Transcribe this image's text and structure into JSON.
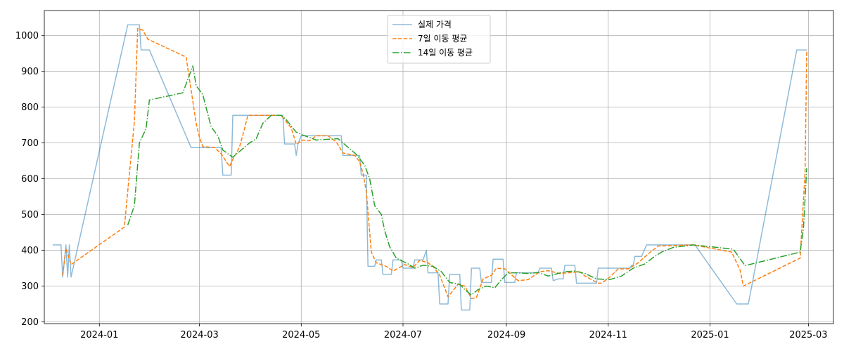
{
  "chart_data": {
    "type": "line",
    "title": "",
    "xlabel": "",
    "ylabel": "",
    "grid": true,
    "legend_position": "top-center",
    "x_ticks": [
      "2024-01",
      "2024-03",
      "2024-05",
      "2024-07",
      "2024-09",
      "2024-11",
      "2025-01",
      "2025-03"
    ],
    "y_ticks": [
      200,
      300,
      400,
      500,
      600,
      700,
      800,
      900,
      1000
    ],
    "xlim": [
      "2023-11-29",
      "2025-03-16"
    ],
    "ylim": [
      195,
      1070
    ],
    "series": [
      {
        "name": "실제 가격",
        "color": "#1f77b4",
        "style": "solid",
        "opacity": 0.5,
        "points": [
          [
            "2023-12-04",
            415
          ],
          [
            "2023-12-09",
            415
          ],
          [
            "2023-12-10",
            325
          ],
          [
            "2023-12-12",
            415
          ],
          [
            "2023-12-13",
            325
          ],
          [
            "2023-12-14",
            415
          ],
          [
            "2023-12-15",
            325
          ],
          [
            "2024-01-18",
            1030
          ],
          [
            "2024-01-25",
            1030
          ],
          [
            "2024-01-26",
            960
          ],
          [
            "2024-01-31",
            960
          ],
          [
            "2024-02-25",
            687
          ],
          [
            "2024-03-14",
            687
          ],
          [
            "2024-03-15",
            610
          ],
          [
            "2024-03-20",
            610
          ],
          [
            "2024-03-21",
            777
          ],
          [
            "2024-04-20",
            777
          ],
          [
            "2024-04-21",
            697
          ],
          [
            "2024-04-27",
            697
          ],
          [
            "2024-04-28",
            665
          ],
          [
            "2024-04-29",
            697
          ],
          [
            "2024-05-01",
            720
          ],
          [
            "2024-05-25",
            720
          ],
          [
            "2024-05-26",
            665
          ],
          [
            "2024-06-05",
            665
          ],
          [
            "2024-06-06",
            610
          ],
          [
            "2024-06-09",
            610
          ],
          [
            "2024-06-10",
            355
          ],
          [
            "2024-06-14",
            355
          ],
          [
            "2024-06-15",
            373
          ],
          [
            "2024-06-18",
            373
          ],
          [
            "2024-06-19",
            333
          ],
          [
            "2024-06-24",
            333
          ],
          [
            "2024-06-25",
            373
          ],
          [
            "2024-06-30",
            373
          ],
          [
            "2024-07-01",
            350
          ],
          [
            "2024-07-07",
            350
          ],
          [
            "2024-07-08",
            373
          ],
          [
            "2024-07-13",
            373
          ],
          [
            "2024-07-15",
            400
          ],
          [
            "2024-07-16",
            337
          ],
          [
            "2024-07-22",
            337
          ],
          [
            "2024-07-23",
            250
          ],
          [
            "2024-07-28",
            250
          ],
          [
            "2024-07-29",
            333
          ],
          [
            "2024-08-04",
            333
          ],
          [
            "2024-08-05",
            233
          ],
          [
            "2024-08-10",
            233
          ],
          [
            "2024-08-11",
            350
          ],
          [
            "2024-08-16",
            350
          ],
          [
            "2024-08-17",
            310
          ],
          [
            "2024-08-23",
            310
          ],
          [
            "2024-08-24",
            375
          ],
          [
            "2024-08-30",
            375
          ],
          [
            "2024-08-31",
            310
          ],
          [
            "2024-09-06",
            310
          ],
          [
            "2024-09-07",
            337
          ],
          [
            "2024-09-20",
            337
          ],
          [
            "2024-09-21",
            350
          ],
          [
            "2024-09-28",
            350
          ],
          [
            "2024-09-29",
            315
          ],
          [
            "2024-10-02",
            320
          ],
          [
            "2024-10-05",
            320
          ],
          [
            "2024-10-06",
            358
          ],
          [
            "2024-10-12",
            358
          ],
          [
            "2024-10-13",
            308
          ],
          [
            "2024-10-25",
            308
          ],
          [
            "2024-10-26",
            350
          ],
          [
            "2024-11-14",
            350
          ],
          [
            "2024-11-15",
            358
          ],
          [
            "2024-11-16",
            358
          ],
          [
            "2024-11-17",
            383
          ],
          [
            "2024-11-21",
            383
          ],
          [
            "2024-11-24",
            415
          ],
          [
            "2024-12-23",
            415
          ],
          [
            "2025-01-17",
            250
          ],
          [
            "2025-01-24",
            250
          ],
          [
            "2025-02-22",
            960
          ],
          [
            "2025-02-28",
            960
          ]
        ]
      },
      {
        "name": "7일 이동 평균",
        "color": "#ff7f0e",
        "style": "dashed",
        "opacity": 1,
        "points": [
          [
            "2023-12-10",
            330
          ],
          [
            "2023-12-12",
            405
          ],
          [
            "2023-12-15",
            360
          ],
          [
            "2024-01-16",
            465
          ],
          [
            "2024-01-18",
            565
          ],
          [
            "2024-01-22",
            760
          ],
          [
            "2024-01-24",
            1020
          ],
          [
            "2024-01-27",
            1015
          ],
          [
            "2024-01-30",
            990
          ],
          [
            "2024-02-22",
            940
          ],
          [
            "2024-02-28",
            755
          ],
          [
            "2024-03-01",
            715
          ],
          [
            "2024-03-03",
            690
          ],
          [
            "2024-03-10",
            687
          ],
          [
            "2024-03-14",
            670
          ],
          [
            "2024-03-19",
            634
          ],
          [
            "2024-03-21",
            654
          ],
          [
            "2024-03-25",
            688
          ],
          [
            "2024-03-28",
            740
          ],
          [
            "2024-03-30",
            777
          ],
          [
            "2024-04-19",
            777
          ],
          [
            "2024-04-21",
            765
          ],
          [
            "2024-04-25",
            742
          ],
          [
            "2024-04-28",
            696
          ],
          [
            "2024-05-02",
            708
          ],
          [
            "2024-05-06",
            706
          ],
          [
            "2024-05-10",
            720
          ],
          [
            "2024-05-17",
            720
          ],
          [
            "2024-05-22",
            703
          ],
          [
            "2024-05-26",
            672
          ],
          [
            "2024-06-02",
            665
          ],
          [
            "2024-06-05",
            648
          ],
          [
            "2024-06-07",
            615
          ],
          [
            "2024-06-09",
            565
          ],
          [
            "2024-06-12",
            395
          ],
          [
            "2024-06-15",
            365
          ],
          [
            "2024-06-21",
            355
          ],
          [
            "2024-06-25",
            342
          ],
          [
            "2024-07-02",
            360
          ],
          [
            "2024-07-07",
            352
          ],
          [
            "2024-07-11",
            372
          ],
          [
            "2024-07-16",
            365
          ],
          [
            "2024-07-19",
            355
          ],
          [
            "2024-07-23",
            330
          ],
          [
            "2024-07-28",
            270
          ],
          [
            "2024-08-03",
            305
          ],
          [
            "2024-08-07",
            300
          ],
          [
            "2024-08-11",
            265
          ],
          [
            "2024-08-14",
            268
          ],
          [
            "2024-08-18",
            320
          ],
          [
            "2024-08-23",
            330
          ],
          [
            "2024-08-26",
            350
          ],
          [
            "2024-08-31",
            348
          ],
          [
            "2024-09-08",
            315
          ],
          [
            "2024-09-14",
            318
          ],
          [
            "2024-09-21",
            340
          ],
          [
            "2024-09-26",
            343
          ],
          [
            "2024-10-03",
            335
          ],
          [
            "2024-10-10",
            338
          ],
          [
            "2024-10-15",
            340
          ],
          [
            "2024-10-18",
            328
          ],
          [
            "2024-10-26",
            308
          ],
          [
            "2024-10-28",
            308
          ],
          [
            "2024-11-02",
            325
          ],
          [
            "2024-11-07",
            348
          ],
          [
            "2024-11-13",
            348
          ],
          [
            "2024-11-19",
            365
          ],
          [
            "2024-11-25",
            390
          ],
          [
            "2024-12-01",
            412
          ],
          [
            "2024-12-22",
            415
          ],
          [
            "2025-01-14",
            395
          ],
          [
            "2025-01-19",
            345
          ],
          [
            "2025-01-21",
            300
          ],
          [
            "2025-02-24",
            378
          ],
          [
            "2025-02-27",
            620
          ],
          [
            "2025-02-28",
            960
          ]
        ]
      },
      {
        "name": "14일 이동 평균",
        "color": "#2ca02c",
        "style": "dashdot",
        "opacity": 1,
        "points": [
          [
            "2024-01-18",
            470
          ],
          [
            "2024-01-22",
            525
          ],
          [
            "2024-01-25",
            700
          ],
          [
            "2024-01-29",
            740
          ],
          [
            "2024-01-31",
            820
          ],
          [
            "2024-02-20",
            840
          ],
          [
            "2024-02-26",
            915
          ],
          [
            "2024-02-28",
            860
          ],
          [
            "2024-03-03",
            835
          ],
          [
            "2024-03-08",
            745
          ],
          [
            "2024-03-12",
            720
          ],
          [
            "2024-03-15",
            680
          ],
          [
            "2024-03-21",
            660
          ],
          [
            "2024-03-26",
            680
          ],
          [
            "2024-03-31",
            700
          ],
          [
            "2024-04-04",
            712
          ],
          [
            "2024-04-08",
            755
          ],
          [
            "2024-04-13",
            777
          ],
          [
            "2024-04-19",
            777
          ],
          [
            "2024-04-22",
            765
          ],
          [
            "2024-04-28",
            730
          ],
          [
            "2024-05-02",
            722
          ],
          [
            "2024-05-10",
            708
          ],
          [
            "2024-05-16",
            710
          ],
          [
            "2024-05-23",
            712
          ],
          [
            "2024-05-26",
            700
          ],
          [
            "2024-06-03",
            668
          ],
          [
            "2024-06-08",
            638
          ],
          [
            "2024-06-11",
            600
          ],
          [
            "2024-06-14",
            525
          ],
          [
            "2024-06-18",
            500
          ],
          [
            "2024-06-20",
            455
          ],
          [
            "2024-06-23",
            410
          ],
          [
            "2024-06-27",
            378
          ],
          [
            "2024-07-04",
            362
          ],
          [
            "2024-07-08",
            350
          ],
          [
            "2024-07-13",
            358
          ],
          [
            "2024-07-19",
            355
          ],
          [
            "2024-07-24",
            340
          ],
          [
            "2024-07-29",
            310
          ],
          [
            "2024-08-04",
            305
          ],
          [
            "2024-08-07",
            290
          ],
          [
            "2024-08-11",
            275
          ],
          [
            "2024-08-15",
            290
          ],
          [
            "2024-08-20",
            300
          ],
          [
            "2024-08-25",
            295
          ],
          [
            "2024-08-29",
            318
          ],
          [
            "2024-09-02",
            337
          ],
          [
            "2024-09-08",
            337
          ],
          [
            "2024-09-14",
            335
          ],
          [
            "2024-09-20",
            338
          ],
          [
            "2024-09-26",
            328
          ],
          [
            "2024-10-06",
            340
          ],
          [
            "2024-10-12",
            342
          ],
          [
            "2024-10-18",
            335
          ],
          [
            "2024-10-25",
            320
          ],
          [
            "2024-11-02",
            318
          ],
          [
            "2024-11-09",
            328
          ],
          [
            "2024-11-16",
            350
          ],
          [
            "2024-11-23",
            362
          ],
          [
            "2024-11-28",
            380
          ],
          [
            "2024-12-03",
            395
          ],
          [
            "2024-12-10",
            408
          ],
          [
            "2024-12-22",
            415
          ],
          [
            "2025-01-05",
            408
          ],
          [
            "2025-01-15",
            403
          ],
          [
            "2025-01-22",
            357
          ],
          [
            "2025-02-24",
            395
          ],
          [
            "2025-02-26",
            460
          ],
          [
            "2025-02-28",
            630
          ]
        ]
      }
    ]
  }
}
